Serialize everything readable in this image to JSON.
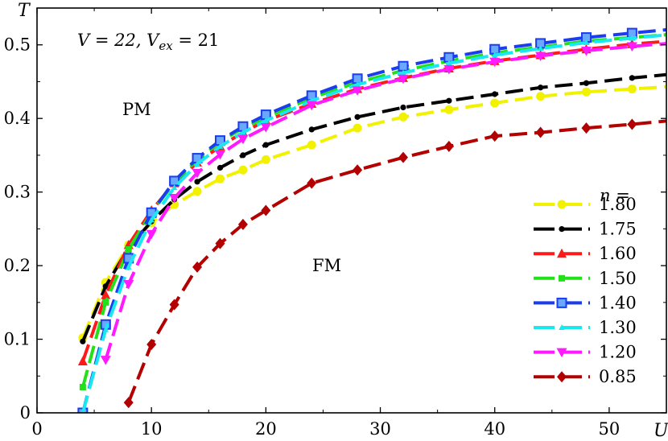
{
  "chart_data": {
    "type": "line",
    "xlabel": "U",
    "ylabel": "T",
    "xlim": [
      0,
      55
    ],
    "ylim": [
      0,
      0.55
    ],
    "x_ticks": [
      "0",
      "10",
      "20",
      "30",
      "40",
      "50"
    ],
    "y_ticks": [
      "0",
      "0.1",
      "0.2",
      "0.3",
      "0.4",
      "0.5"
    ],
    "grid": false,
    "legend_placement": "bottom-right",
    "legend_title": "n =",
    "annotations": {
      "params": "V = 22, V",
      "params_sub": "ex",
      "params_tail": " = 21",
      "pm": "PM",
      "fm": "FM"
    },
    "series": [
      {
        "name": "1.80",
        "color": "#f2f200",
        "marker": "circle",
        "x": [
          4,
          6,
          8,
          10,
          12,
          14,
          16,
          18,
          20,
          24,
          28,
          32,
          36,
          40,
          44,
          48,
          52,
          56
        ],
        "y": [
          0.102,
          0.177,
          0.228,
          0.258,
          0.283,
          0.301,
          0.318,
          0.33,
          0.344,
          0.364,
          0.387,
          0.402,
          0.412,
          0.421,
          0.43,
          0.436,
          0.44,
          0.444
        ]
      },
      {
        "name": "1.75",
        "color": "#000000",
        "marker": "dot",
        "x": [
          4,
          6,
          8,
          10,
          12,
          14,
          16,
          18,
          20,
          24,
          28,
          32,
          36,
          40,
          44,
          48,
          52,
          56
        ],
        "y": [
          0.097,
          0.172,
          0.224,
          0.26,
          0.29,
          0.314,
          0.333,
          0.35,
          0.364,
          0.385,
          0.402,
          0.415,
          0.424,
          0.433,
          0.442,
          0.448,
          0.455,
          0.461
        ]
      },
      {
        "name": "1.60",
        "color": "#ff1a1a",
        "marker": "triangle-up",
        "x": [
          4,
          6,
          8,
          10,
          12,
          14,
          16,
          18,
          20,
          24,
          28,
          32,
          36,
          40,
          44,
          48,
          52,
          56
        ],
        "y": [
          0.07,
          0.16,
          0.228,
          0.275,
          0.312,
          0.34,
          0.362,
          0.381,
          0.397,
          0.42,
          0.44,
          0.455,
          0.468,
          0.478,
          0.486,
          0.494,
          0.501,
          0.506
        ]
      },
      {
        "name": "1.50",
        "color": "#22e01a",
        "marker": "square",
        "x": [
          4,
          6,
          8,
          10,
          12,
          14,
          16,
          18,
          20,
          24,
          28,
          32,
          36,
          40,
          44,
          48,
          52,
          56
        ],
        "y": [
          0.035,
          0.15,
          0.222,
          0.272,
          0.313,
          0.344,
          0.368,
          0.387,
          0.401,
          0.428,
          0.449,
          0.465,
          0.478,
          0.489,
          0.497,
          0.505,
          0.51,
          0.515
        ]
      },
      {
        "name": "1.40",
        "color": "#1a3df0",
        "marker": "square-open",
        "x": [
          4,
          6,
          8,
          10,
          12,
          14,
          16,
          18,
          20,
          24,
          28,
          32,
          36,
          40,
          44,
          48,
          52,
          56
        ],
        "y": [
          0.0,
          0.12,
          0.21,
          0.272,
          0.315,
          0.346,
          0.37,
          0.389,
          0.405,
          0.431,
          0.454,
          0.471,
          0.483,
          0.494,
          0.502,
          0.51,
          0.516,
          0.522
        ]
      },
      {
        "name": "1.30",
        "color": "#1ae8f0",
        "marker": "triangle-small",
        "x": [
          4,
          6,
          8,
          10,
          12,
          14,
          16,
          18,
          20,
          24,
          28,
          32,
          36,
          40,
          44,
          48,
          52,
          56
        ],
        "y": [
          0.0,
          0.113,
          0.198,
          0.262,
          0.306,
          0.338,
          0.362,
          0.381,
          0.397,
          0.424,
          0.446,
          0.462,
          0.475,
          0.486,
          0.495,
          0.503,
          0.509,
          0.515
        ]
      },
      {
        "name": "1.20",
        "color": "#ff1aff",
        "marker": "triangle-down",
        "x": [
          6,
          8,
          10,
          12,
          14,
          16,
          18,
          20,
          24,
          28,
          32,
          36,
          40,
          44,
          48,
          52,
          56
        ],
        "y": [
          0.072,
          0.175,
          0.243,
          0.292,
          0.326,
          0.351,
          0.372,
          0.388,
          0.418,
          0.438,
          0.454,
          0.467,
          0.477,
          0.485,
          0.492,
          0.498,
          0.503
        ]
      },
      {
        "name": "0.85",
        "color": "#b30000",
        "marker": "diamond",
        "x": [
          8,
          10,
          12,
          14,
          16,
          18,
          20,
          24,
          28,
          32,
          36,
          40,
          44,
          48,
          52,
          56
        ],
        "y": [
          0.014,
          0.093,
          0.147,
          0.198,
          0.23,
          0.256,
          0.275,
          0.312,
          0.33,
          0.347,
          0.362,
          0.376,
          0.381,
          0.387,
          0.392,
          0.398
        ]
      }
    ]
  }
}
